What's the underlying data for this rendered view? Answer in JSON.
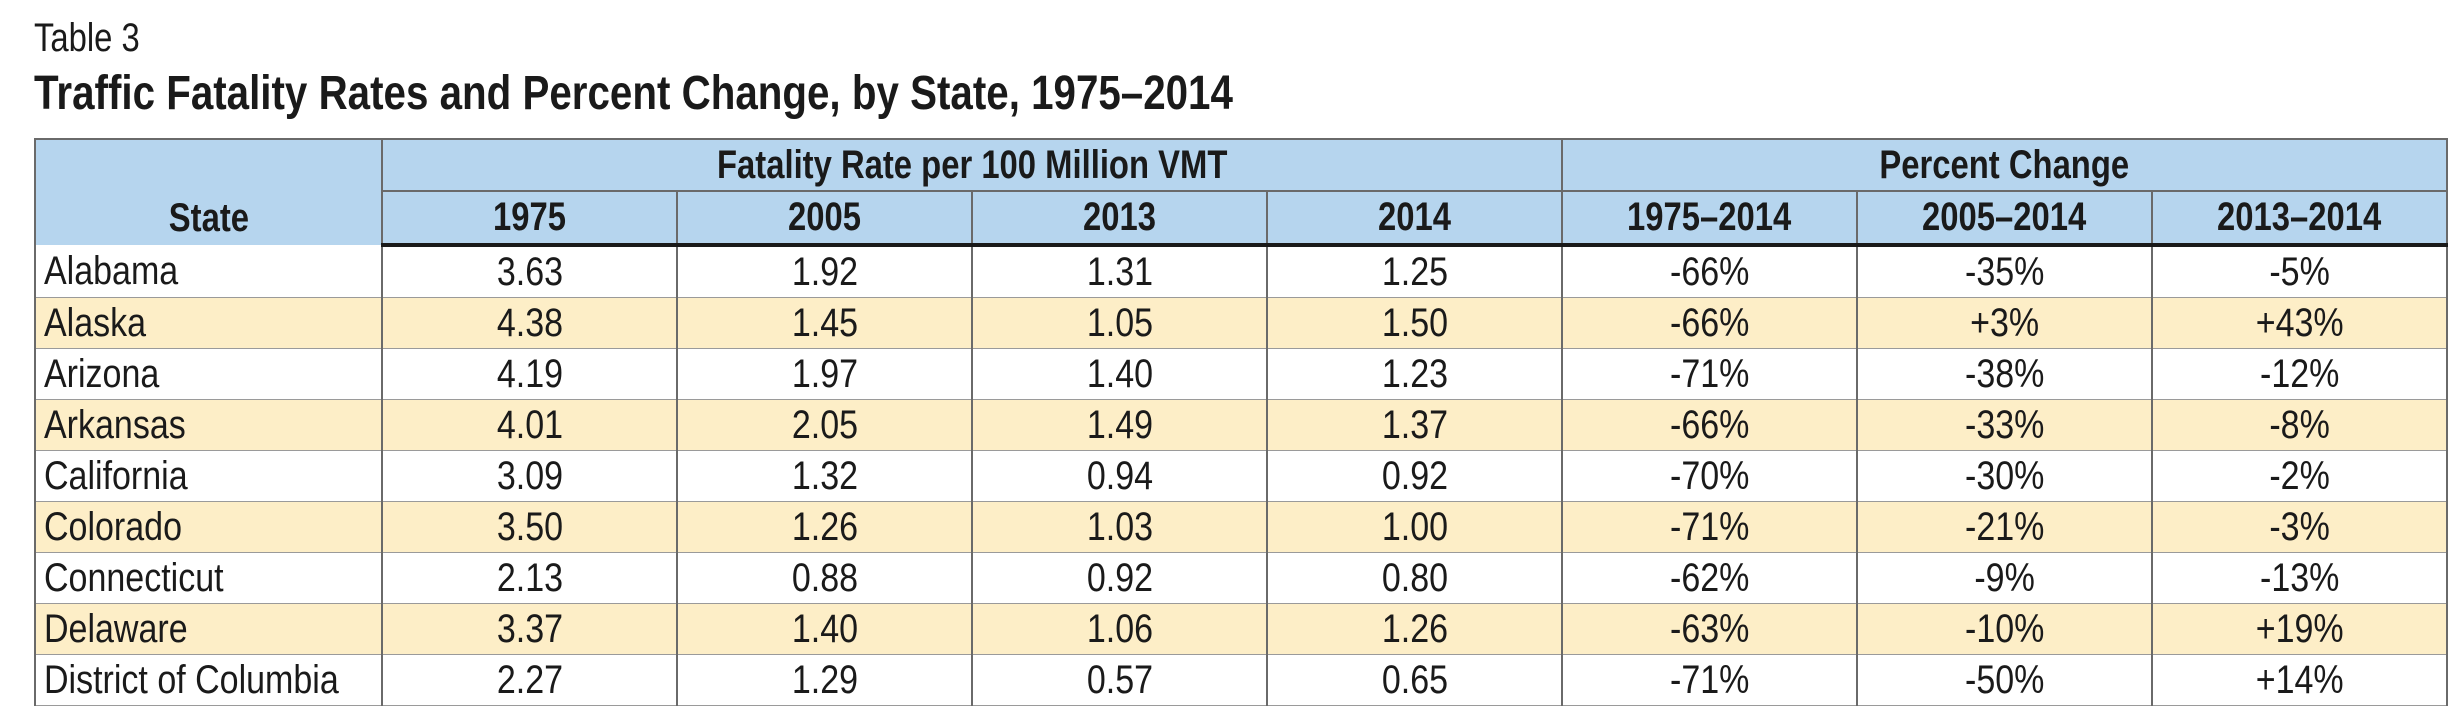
{
  "caption": "Table 3",
  "title": "Traffic Fatality Rates and Percent Change, by State, 1975–2014",
  "header": {
    "state": "State",
    "group_rate": "Fatality Rate per 100 Million VMT",
    "group_change": "Percent Change",
    "columns": [
      "1975",
      "2005",
      "2013",
      "2014",
      "1975–2014",
      "2005–2014",
      "2013–2014"
    ]
  },
  "rows": [
    {
      "state": "Alabama",
      "values": [
        "3.63",
        "1.92",
        "1.31",
        "1.25",
        "-66%",
        "-35%",
        "-5%"
      ]
    },
    {
      "state": "Alaska",
      "values": [
        "4.38",
        "1.45",
        "1.05",
        "1.50",
        "-66%",
        "+3%",
        "+43%"
      ]
    },
    {
      "state": "Arizona",
      "values": [
        "4.19",
        "1.97",
        "1.40",
        "1.23",
        "-71%",
        "-38%",
        "-12%"
      ]
    },
    {
      "state": "Arkansas",
      "values": [
        "4.01",
        "2.05",
        "1.49",
        "1.37",
        "-66%",
        "-33%",
        "-8%"
      ]
    },
    {
      "state": "California",
      "values": [
        "3.09",
        "1.32",
        "0.94",
        "0.92",
        "-70%",
        "-30%",
        "-2%"
      ]
    },
    {
      "state": "Colorado",
      "values": [
        "3.50",
        "1.26",
        "1.03",
        "1.00",
        "-71%",
        "-21%",
        "-3%"
      ]
    },
    {
      "state": "Connecticut",
      "values": [
        "2.13",
        "0.88",
        "0.92",
        "0.80",
        "-62%",
        "-9%",
        "-13%"
      ]
    },
    {
      "state": "Delaware",
      "values": [
        "3.37",
        "1.40",
        "1.06",
        "1.26",
        "-63%",
        "-10%",
        "+19%"
      ]
    },
    {
      "state": "District of Columbia",
      "values": [
        "2.27",
        "1.29",
        "0.57",
        "0.65",
        "-71%",
        "-50%",
        "+14%"
      ]
    }
  ]
}
